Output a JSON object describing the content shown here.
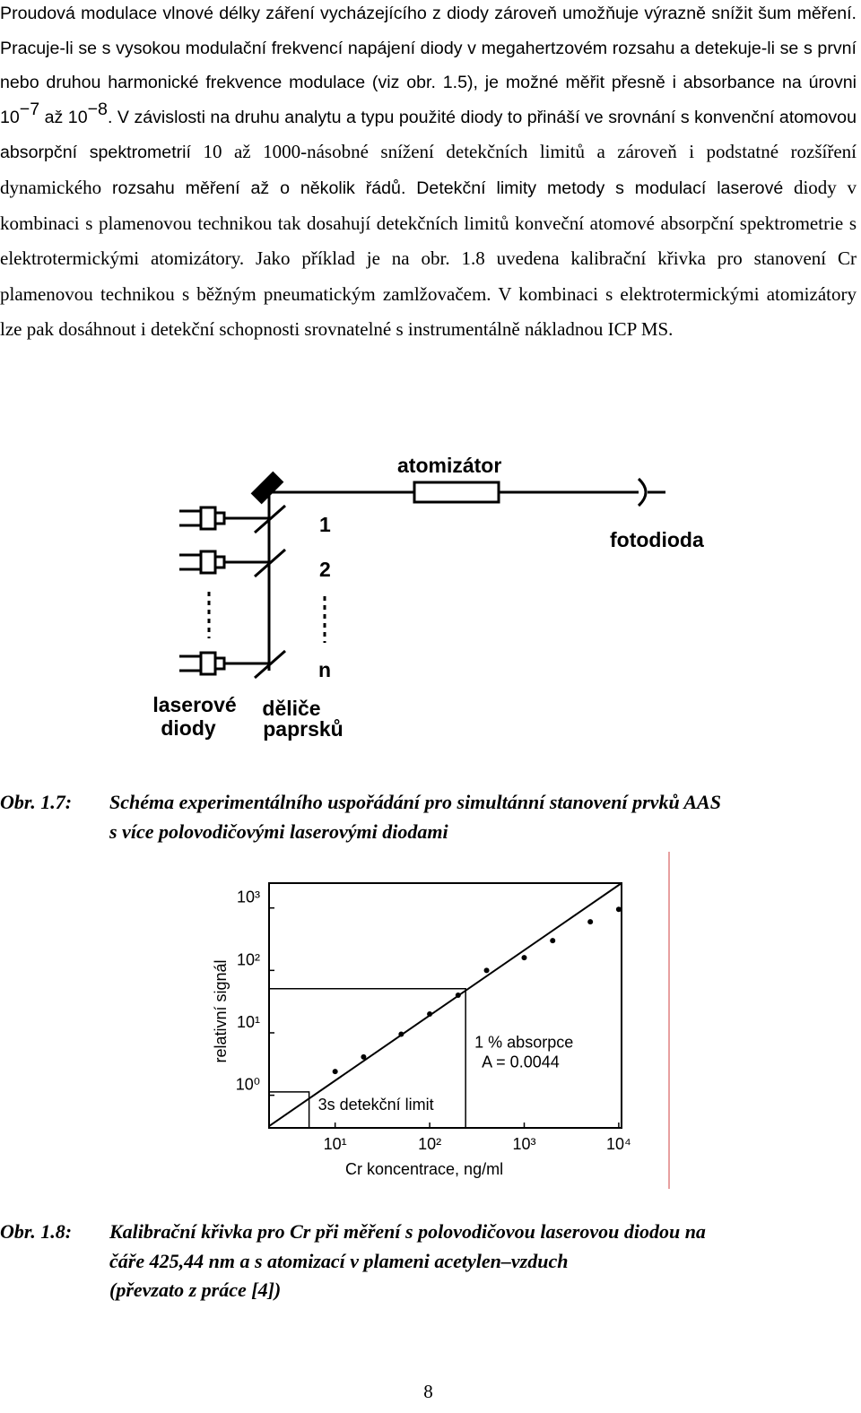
{
  "paragraph": {
    "parts": [
      "Proudová modulace vlnové délky záření vycházejícího z diody zároveň umožňuje výrazně snížit šum měření. Pracuje-li se s vysokou modulační frekvencí napájení diody v megahertzovém rozsahu a detekuje-li se s první nebo druhou harmonické frekvence modulace (viz obr. 1.5), je možné měřit přesně i absorbance na úrovni 10",
      "−7",
      " až 10",
      "−8",
      ". V závislosti na druhu analytu a typu použité diody to přináší ve srovnání s konvenční atomovou absorpční spektrometrií",
      " 10 až 1000-násobné snížení detekčních limitů a zároveň i podstatné rozšíření dynamického",
      " rozsahu měření až o několik řádů. Detekční limity metody s modulací laserové",
      " diody v kombinaci s plamenovou technikou tak dosahují detekčních limitů konveční atomové absorpční spektrometrie s elektrotermickými atomizátory. Jako příklad je na obr. 1.8 uvedena kalibrační křivka pro stanovení Cr plamenovou technikou s běžným pneumatickým zamlžovačem. V kombinaci s elektrotermickými atomizátory lze pak dosáhnout i detekční schopnosti srovnatelné s instrumentálně nákladnou ICP MS."
    ]
  },
  "figure_1": {
    "atomizer": "atomizátor",
    "photodiode": "fotodioda",
    "beam_labels": [
      "1",
      "2",
      "n"
    ],
    "lasers_label": [
      "laserové",
      "diody"
    ],
    "splitters_label": [
      "děliče",
      "paprsků"
    ]
  },
  "caption_1": {
    "label": "Obr. 1.7:",
    "lines": [
      "Schéma experimentálního uspořádání pro simultánní stanovení prvků AAS",
      "s více polovodičovými laserovými diodami"
    ]
  },
  "chart_data": {
    "type": "scatter",
    "xlabel": "Cr koncentrace, ng/ml",
    "ylabel": "relativní signál",
    "xscale": "log",
    "yscale": "log",
    "xlim": [
      2,
      10700
    ],
    "ylim": [
      0.3,
      2500
    ],
    "xticks": [
      {
        "value": 10,
        "label": "10¹"
      },
      {
        "value": 100,
        "label": "10²"
      },
      {
        "value": 1000,
        "label": "10³"
      },
      {
        "value": 10000,
        "label": "10⁴"
      }
    ],
    "yticks": [
      {
        "value": 1,
        "label": "10⁰"
      },
      {
        "value": 10,
        "label": "10¹"
      },
      {
        "value": 100,
        "label": "10²"
      },
      {
        "value": 1000,
        "label": "10³"
      }
    ],
    "color": "#000000",
    "series": [
      {
        "type": "scatter",
        "x": [
          10,
          20,
          50,
          100,
          200,
          400,
          1000,
          2000,
          5000,
          10000
        ],
        "values": [
          2.4,
          4.1,
          9.5,
          20,
          40,
          100,
          160,
          300,
          600,
          950
        ]
      },
      {
        "type": "line",
        "x": [
          2,
          10700
        ],
        "values": [
          0.32,
          2500
        ]
      }
    ],
    "annotations": [
      {
        "lines": [
          "3s detekční limit"
        ],
        "x": 5.3,
        "y": 1.13
      },
      {
        "lines": [
          "1 % absorpce",
          "A = 0.0044"
        ],
        "x": 240,
        "y": 51
      }
    ]
  },
  "caption_2": {
    "label": "Obr. 1.8:",
    "lines": [
      "Kalibrační křivka pro Cr při měření s polovodičovou laserovou diodou na",
      "čáře 425,44 nm a s atomizací v plameni acetylen–vzduch",
      "(převzato z práce [4])"
    ]
  },
  "page_number": "8"
}
